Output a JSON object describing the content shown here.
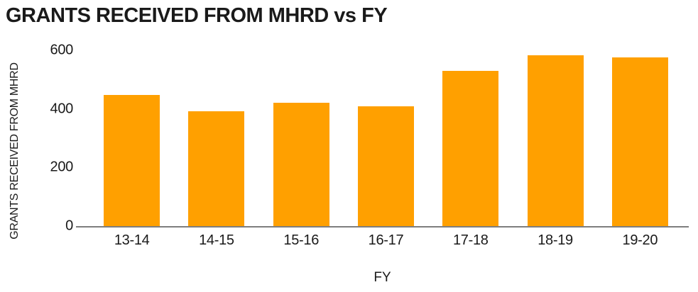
{
  "chart_data": {
    "type": "bar",
    "title": "GRANTS RECEIVED FROM MHRD vs FY",
    "xlabel": "FY",
    "ylabel": "GRANTS RECEIVED FROM MHRD",
    "categories": [
      "13-14",
      "14-15",
      "15-16",
      "16-17",
      "17-18",
      "18-19",
      "19-20"
    ],
    "values": [
      447,
      391,
      421,
      409,
      529,
      583,
      577
    ],
    "ylim": [
      0,
      600
    ],
    "yticks": [
      0,
      200,
      400,
      600
    ],
    "grid": false,
    "legend": "none",
    "colors": {
      "bar": "#FFA000",
      "axis": "#7E7E7E",
      "text": "#1A1A1A"
    }
  }
}
